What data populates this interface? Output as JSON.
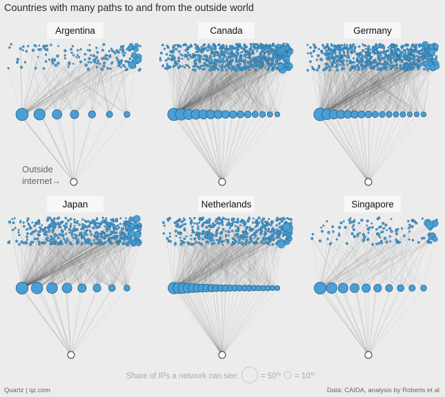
{
  "title": "Countries with many paths to and from the outside world",
  "footer": {
    "source_left": "Quartz | qz.com",
    "source_right": "Data: CAIDA, analysis by Roberts et al"
  },
  "annotation": {
    "line1": "Outside",
    "line2": "internet→"
  },
  "legend": {
    "label": "Share of IPs a network can see:",
    "big_value": "= 50",
    "big_unit": "%",
    "small_value": "= 10",
    "small_unit": "%"
  },
  "colors": {
    "node_fill": "#4a9fd4",
    "node_stroke": "#1f5f8b",
    "edge": "#555555",
    "background": "#ececec",
    "label_box": "#f7f7f7"
  },
  "chart_data": [
    {
      "type": "network",
      "country": "Argentina",
      "domestic_networks_approx": 160,
      "border_networks_share_pct": [
        30,
        25,
        18,
        14,
        10,
        8,
        7
      ]
    },
    {
      "type": "network",
      "country": "Canada",
      "domestic_networks_approx": 700,
      "border_networks_share_pct": [
        30,
        26,
        21,
        19,
        17,
        15,
        14,
        12,
        11,
        10,
        9,
        8,
        7,
        6,
        5
      ]
    },
    {
      "type": "network",
      "country": "Germany",
      "domestic_networks_approx": 700,
      "border_networks_share_pct": [
        32,
        22,
        17,
        14,
        12,
        11,
        10,
        9,
        8,
        7,
        7,
        6,
        6,
        5,
        5,
        5
      ]
    },
    {
      "type": "network",
      "country": "Japan",
      "domestic_networks_approx": 500,
      "border_networks_share_pct": [
        29,
        26,
        23,
        19,
        14,
        12,
        9,
        7
      ]
    },
    {
      "type": "network",
      "country": "Netherlands",
      "domestic_networks_approx": 450,
      "border_networks_share_pct": [
        26,
        24,
        22,
        19,
        16,
        14,
        13,
        12,
        11,
        10,
        9,
        9,
        8,
        8,
        7,
        7,
        7,
        6,
        6,
        6,
        6,
        5,
        5
      ]
    },
    {
      "type": "network",
      "country": "Singapore",
      "domestic_networks_approx": 120,
      "border_networks_share_pct": [
        28,
        23,
        19,
        16,
        14,
        12,
        10,
        9,
        8,
        7
      ]
    }
  ]
}
